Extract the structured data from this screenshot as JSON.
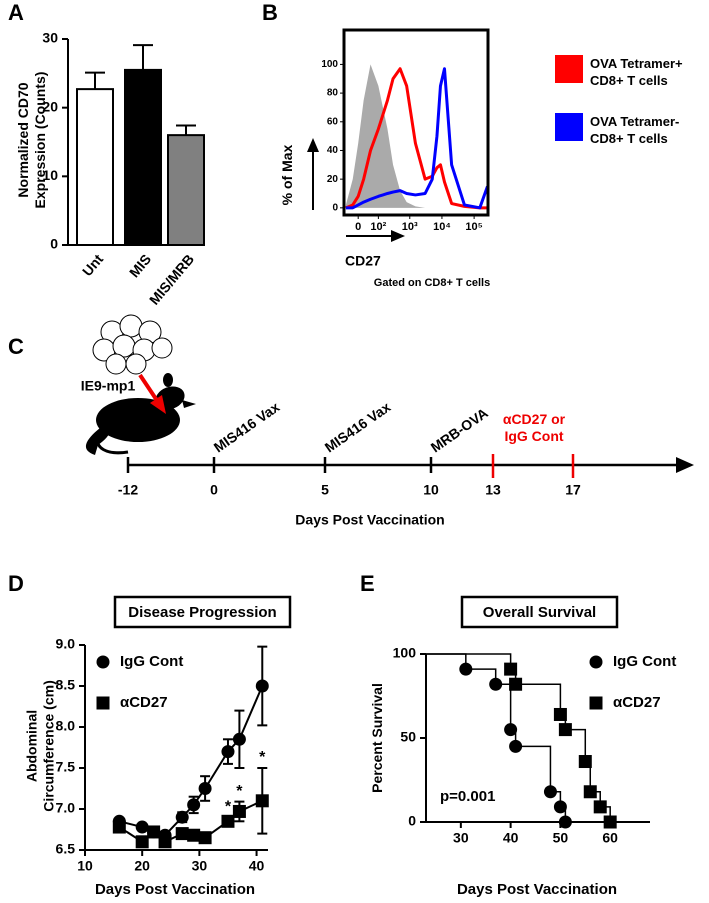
{
  "chart_data": [
    {
      "type": "bar",
      "panel": "A",
      "y_label": "Normalized CD70 Expression (Counts)",
      "categories": [
        "Unt",
        "MIS",
        "MIS/MRB"
      ],
      "values": [
        22.7,
        25.5,
        16.0
      ],
      "errors": [
        2.4,
        3.6,
        1.4
      ],
      "colors": [
        "#ffffff",
        "#000000",
        "#808080"
      ],
      "ylim": [
        0,
        30
      ],
      "yticks": [
        0,
        10,
        20,
        30
      ]
    },
    {
      "type": "area",
      "panel": "B",
      "y_label": "% of Max",
      "x_label": "CD27",
      "note": "Gated on CD8+ T cells",
      "x_scale": "biexponential",
      "x": [
        -50,
        -20,
        0,
        20,
        50,
        100,
        200,
        300,
        500,
        800,
        1500,
        3000,
        5000,
        7000,
        9000,
        12000,
        20000,
        50000,
        150000,
        260000
      ],
      "series": [
        {
          "color": "#aaaaaa",
          "filled": true,
          "values": [
            2,
            20,
            45,
            75,
            100,
            85,
            55,
            30,
            12,
            4,
            1,
            0,
            0,
            0,
            0,
            0,
            0,
            0,
            0,
            0
          ]
        },
        {
          "name": "OVA Tetramer+ CD8+ T cells",
          "color": "#ff0000",
          "filled": false,
          "values": [
            0,
            2,
            8,
            20,
            40,
            55,
            75,
            90,
            97,
            85,
            45,
            20,
            22,
            28,
            30,
            18,
            3,
            1,
            0,
            0
          ]
        },
        {
          "name": "OVA Tetramer- CD8+ T cells",
          "color": "#0000ff",
          "filled": false,
          "values": [
            0,
            0,
            2,
            4,
            6,
            8,
            10,
            11,
            12,
            10,
            9,
            10,
            20,
            50,
            85,
            97,
            30,
            2,
            0,
            15
          ]
        }
      ],
      "xlim": [
        -60,
        270000
      ],
      "xticks": [
        {
          "value": 0,
          "label": "0"
        },
        {
          "value": 100,
          "label": "10²"
        },
        {
          "value": 1000,
          "label": "10³"
        },
        {
          "value": 10000,
          "label": "10⁴"
        },
        {
          "value": 100000,
          "label": "10⁵"
        }
      ],
      "ylim": [
        -5,
        124
      ],
      "yticks": [
        0,
        20,
        40,
        60,
        80,
        100
      ]
    },
    {
      "type": "line",
      "panel": "D",
      "title": "Disease Progression",
      "x_label": "Days Post Vaccination",
      "y_label": "Abdominal Circumference (cm)",
      "x": [
        16,
        20,
        22,
        24,
        27,
        29,
        31,
        35,
        37,
        41
      ],
      "series": [
        {
          "name": "IgG Cont",
          "marker": "circle",
          "color": "#000000",
          "values": [
            6.85,
            6.78,
            6.72,
            6.68,
            6.9,
            7.05,
            7.25,
            7.7,
            7.85,
            8.5
          ],
          "errors": [
            0.03,
            0.03,
            0.03,
            0.03,
            0.06,
            0.1,
            0.15,
            0.15,
            0.35,
            0.48
          ]
        },
        {
          "name": "αCD27",
          "marker": "square",
          "color": "#000000",
          "values": [
            6.78,
            6.6,
            6.72,
            6.6,
            6.7,
            6.68,
            6.65,
            6.85,
            6.97,
            7.1
          ],
          "errors": [
            0.03,
            0.05,
            0.03,
            0.05,
            0.03,
            0.03,
            0.03,
            0.05,
            0.12,
            0.4
          ]
        }
      ],
      "annotations": [
        "*",
        "*",
        "*"
      ],
      "xlim": [
        10,
        42
      ],
      "xticks": [
        10,
        20,
        30,
        40
      ],
      "ylim": [
        6.5,
        9.0
      ],
      "yticks": [
        {
          "value": 6.5,
          "label": "6.5"
        },
        {
          "value": 7.0,
          "label": "7.0"
        },
        {
          "value": 7.5,
          "label": "7.5"
        },
        {
          "value": 8.0,
          "label": "8.0"
        },
        {
          "value": 8.5,
          "label": "8.5"
        },
        {
          "value": 9.0,
          "label": "9.0"
        }
      ]
    },
    {
      "type": "step",
      "panel": "E",
      "title": "Overall Survival",
      "x_label": "Days Post Vaccination",
      "y_label": "Percent Survival",
      "annotation": "p=0.001",
      "series": [
        {
          "name": "IgG Cont",
          "marker": "circle",
          "color": "#000000",
          "x": [
            31,
            37,
            40,
            41,
            48,
            50,
            51
          ],
          "values": [
            91,
            82,
            55,
            45,
            18,
            9,
            0
          ]
        },
        {
          "name": "αCD27",
          "marker": "square",
          "color": "#000000",
          "x": [
            40,
            41,
            50,
            51,
            55,
            56,
            58,
            60
          ],
          "values": [
            91,
            82,
            64,
            55,
            36,
            18,
            9,
            0
          ]
        }
      ],
      "xlim": [
        23,
        68
      ],
      "xticks": [
        30,
        40,
        50,
        60
      ],
      "ylim": [
        0,
        100
      ],
      "yticks": [
        0,
        50,
        100
      ]
    }
  ],
  "diagram": {
    "panel": "C",
    "cells_label": "IE9-mp1",
    "ticks": [
      -12,
      0,
      5,
      10,
      13,
      17
    ],
    "events": [
      "MIS416 Vax",
      "MIS416 Vax",
      "MRB-OVA"
    ],
    "treatment": "αCD27 or IgG Cont",
    "axis_label": "Days Post Vaccination"
  }
}
